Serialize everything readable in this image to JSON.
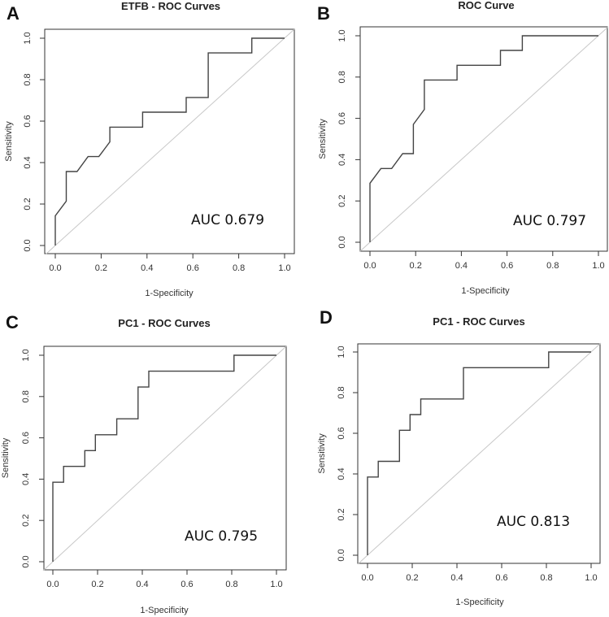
{
  "chart_data": [
    {
      "type": "line",
      "panel_label": "A",
      "title": "ETFB - ROC Curves",
      "xlabel": "1-Specificity",
      "ylabel": "Sensitivity",
      "xlim": [
        0,
        1
      ],
      "ylim": [
        0,
        1
      ],
      "grid": false,
      "xticks": [
        "0.0",
        "0.2",
        "0.4",
        "0.6",
        "0.8",
        "1.0"
      ],
      "yticks": [
        "0.0",
        "0.2",
        "0.4",
        "0.6",
        "0.8",
        "1.0"
      ],
      "annotation": "AUC 0.679",
      "series": [
        {
          "name": "ROC",
          "x": [
            0,
            0,
            0.048,
            0.048,
            0.095,
            0.143,
            0.19,
            0.238,
            0.238,
            0.381,
            0.381,
            0.571,
            0.571,
            0.667,
            0.667,
            0.857,
            0.857,
            1
          ],
          "y": [
            0,
            0.143,
            0.214,
            0.357,
            0.357,
            0.429,
            0.429,
            0.5,
            0.571,
            0.571,
            0.643,
            0.643,
            0.714,
            0.714,
            0.929,
            0.929,
            1,
            1
          ]
        }
      ]
    },
    {
      "type": "line",
      "panel_label": "B",
      "title": "ROC Curve",
      "xlabel": "1-Specificity",
      "ylabel": "Sensitivity",
      "xlim": [
        0,
        1
      ],
      "ylim": [
        0,
        1
      ],
      "grid": false,
      "xticks": [
        "0.0",
        "0.2",
        "0.4",
        "0.6",
        "0.8",
        "1.0"
      ],
      "yticks": [
        "0.0",
        "0.2",
        "0.4",
        "0.6",
        "0.8",
        "1.0"
      ],
      "annotation": "AUC 0.797",
      "series": [
        {
          "name": "ROC",
          "x": [
            0,
            0,
            0.048,
            0.095,
            0.143,
            0.19,
            0.19,
            0.238,
            0.238,
            0.381,
            0.381,
            0.571,
            0.571,
            0.667,
            0.667,
            1
          ],
          "y": [
            0,
            0.286,
            0.357,
            0.357,
            0.429,
            0.429,
            0.571,
            0.643,
            0.786,
            0.786,
            0.857,
            0.857,
            0.929,
            0.929,
            1,
            1
          ]
        }
      ]
    },
    {
      "type": "line",
      "panel_label": "C",
      "title": "PC1 - ROC Curves",
      "xlabel": "1-Specificity",
      "ylabel": "Sensitivity",
      "xlim": [
        0,
        1
      ],
      "ylim": [
        0,
        1
      ],
      "grid": false,
      "xticks": [
        "0.0",
        "0.2",
        "0.4",
        "0.6",
        "0.8",
        "1.0"
      ],
      "yticks": [
        "0.0",
        "0.2",
        "0.4",
        "0.6",
        "0.8",
        "1.0"
      ],
      "annotation": "AUC 0.795",
      "series": [
        {
          "name": "ROC",
          "x": [
            0,
            0,
            0.048,
            0.048,
            0.143,
            0.143,
            0.19,
            0.19,
            0.286,
            0.286,
            0.381,
            0.381,
            0.429,
            0.429,
            0.81,
            0.81,
            1
          ],
          "y": [
            0,
            0.385,
            0.385,
            0.462,
            0.462,
            0.538,
            0.538,
            0.615,
            0.615,
            0.692,
            0.692,
            0.846,
            0.846,
            0.923,
            0.923,
            1,
            1
          ]
        }
      ]
    },
    {
      "type": "line",
      "panel_label": "D",
      "title": "PC1 - ROC Curves",
      "xlabel": "1-Specificity",
      "ylabel": "Sensitivity",
      "xlim": [
        0,
        1
      ],
      "ylim": [
        0,
        1
      ],
      "grid": false,
      "xticks": [
        "0.0",
        "0.2",
        "0.4",
        "0.6",
        "0.8",
        "1.0"
      ],
      "yticks": [
        "0.0",
        "0.2",
        "0.4",
        "0.6",
        "0.8",
        "1.0"
      ],
      "annotation": "AUC 0.813",
      "series": [
        {
          "name": "ROC",
          "x": [
            0,
            0,
            0.048,
            0.048,
            0.143,
            0.143,
            0.19,
            0.19,
            0.238,
            0.238,
            0.429,
            0.429,
            0.81,
            0.81,
            1
          ],
          "y": [
            0,
            0.385,
            0.385,
            0.462,
            0.462,
            0.615,
            0.615,
            0.692,
            0.692,
            0.769,
            0.769,
            0.923,
            0.923,
            1,
            1
          ]
        }
      ]
    }
  ]
}
